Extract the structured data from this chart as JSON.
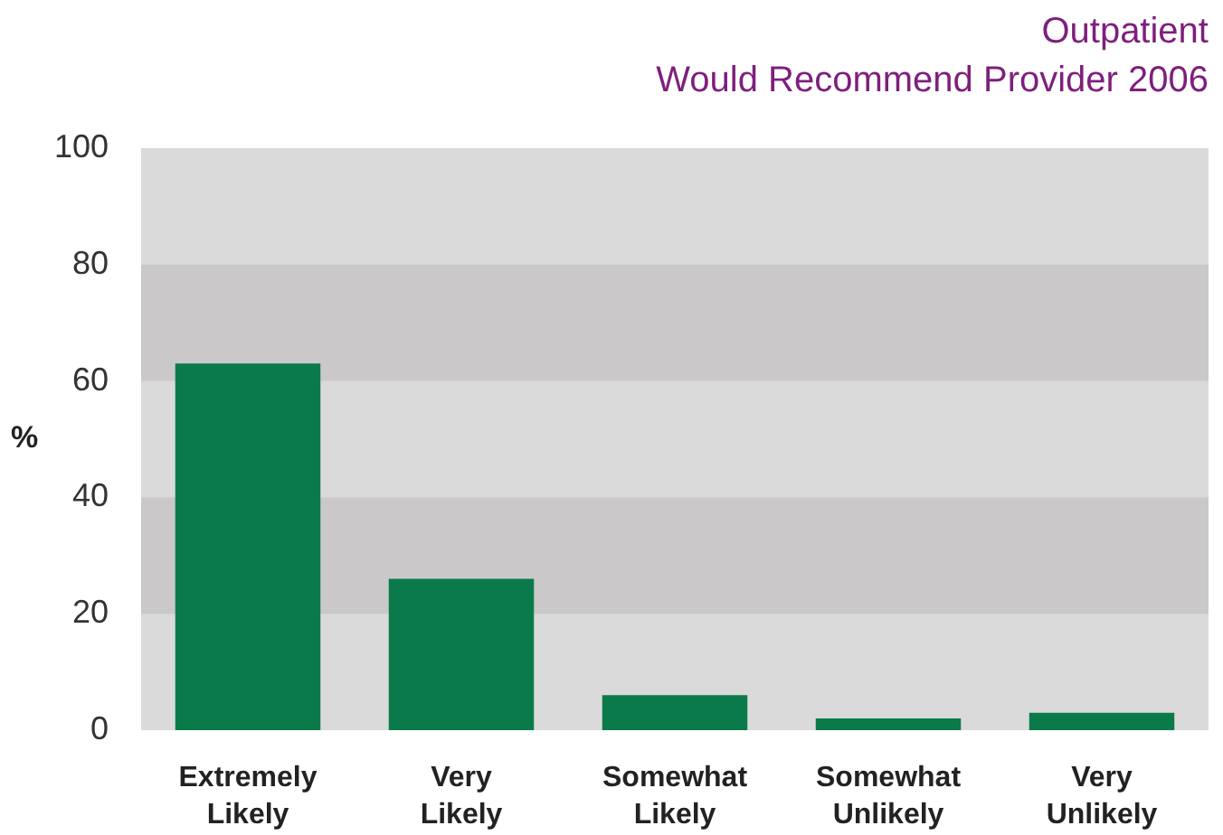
{
  "chart_data": {
    "type": "bar",
    "title": "Outpatient",
    "subtitle": "Would Recommend Provider 2006",
    "ylabel": "%",
    "categories": [
      "Extremely Likely",
      "Very Likely",
      "Somewhat Likely",
      "Somewhat Unlikely",
      "Very Unlikely"
    ],
    "values": [
      63,
      26,
      6,
      2,
      3
    ],
    "color": "#0b7a4a",
    "ylim": [
      0,
      100
    ],
    "yticks": [
      0,
      20,
      40,
      60,
      80,
      100
    ],
    "bands": [
      {
        "axis": "y",
        "from": 20,
        "to": 40,
        "color": "#cac8c9"
      },
      {
        "axis": "y",
        "from": 60,
        "to": 80,
        "color": "#cac8c9"
      }
    ]
  }
}
